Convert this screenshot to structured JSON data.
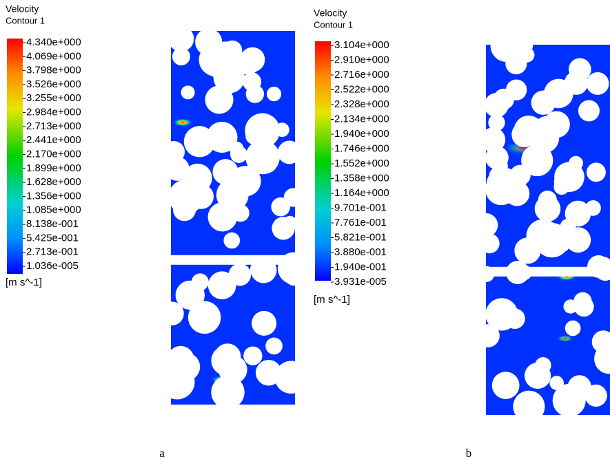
{
  "panels": [
    {
      "title": "Velocity",
      "subtitle": "Contour 1",
      "legend_labels": [
        "4.340e+000",
        "4.069e+000",
        "3.798e+000",
        "3.526e+000",
        "3.255e+000",
        "2.984e+000",
        "2.713e+000",
        "2.441e+000",
        "2.170e+000",
        "1.899e+000",
        "1.628e+000",
        "1.356e+000",
        "1.085e+000",
        "8.138e-001",
        "5.425e-001",
        "2.713e-001",
        "1.036e-005"
      ],
      "unit": "[m s^-1]",
      "caption": "a"
    },
    {
      "title": "Velocity",
      "subtitle": "Contour 1",
      "legend_labels": [
        "3.104e+000",
        "2.910e+000",
        "2.716e+000",
        "2.522e+000",
        "2.328e+000",
        "2.134e+000",
        "1.940e+000",
        "1.746e+000",
        "1.552e+000",
        "1.358e+000",
        "1.164e+000",
        "9.701e-001",
        "7.761e-001",
        "5.821e-001",
        "3.880e-001",
        "1.940e-001",
        "3.931e-005"
      ],
      "unit": "[m s^-1]",
      "caption": "b"
    }
  ]
}
